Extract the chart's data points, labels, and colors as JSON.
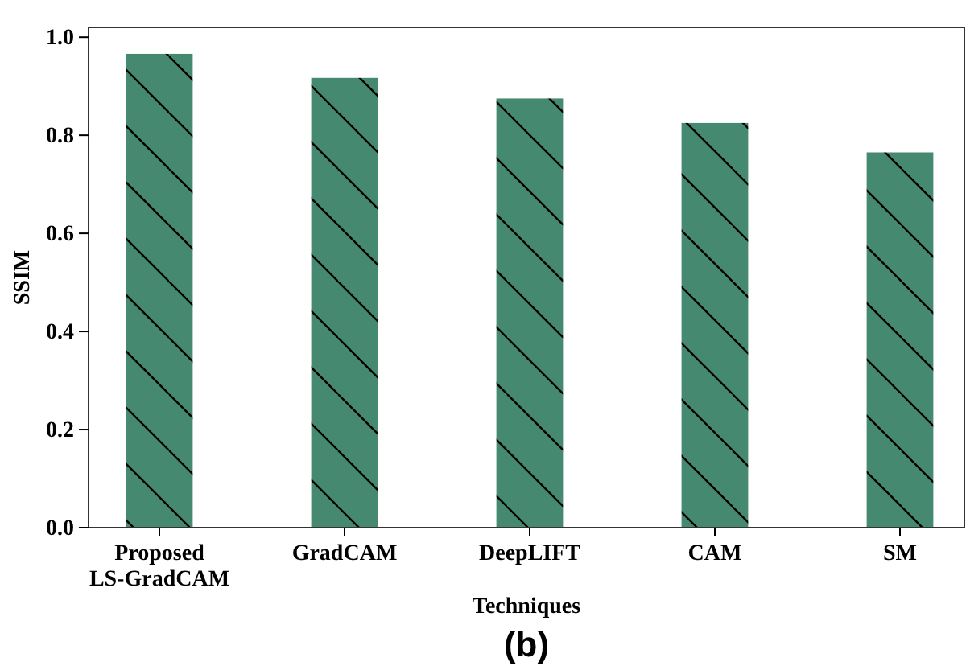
{
  "chart_data": {
    "type": "bar",
    "xlabel": "Techniques",
    "ylabel": "SSIM",
    "categories": [
      "Proposed\nLS-GradCAM",
      "GradCAM",
      "DeepLIFT",
      "CAM",
      "SM"
    ],
    "values": [
      0.966,
      0.917,
      0.875,
      0.825,
      0.765
    ],
    "color": "#458a70",
    "ylim": [
      0,
      1.02
    ],
    "yticks": [
      {
        "value": 0,
        "label": "0.0"
      },
      {
        "value": 0.2,
        "label": "0.2"
      },
      {
        "value": 0.4,
        "label": "0.4"
      },
      {
        "value": 0.6,
        "label": "0.6"
      },
      {
        "value": 0.8,
        "label": "0.8"
      },
      {
        "value": 1,
        "label": "1.0"
      }
    ],
    "grid": false,
    "annotations": [
      "(b)"
    ]
  }
}
